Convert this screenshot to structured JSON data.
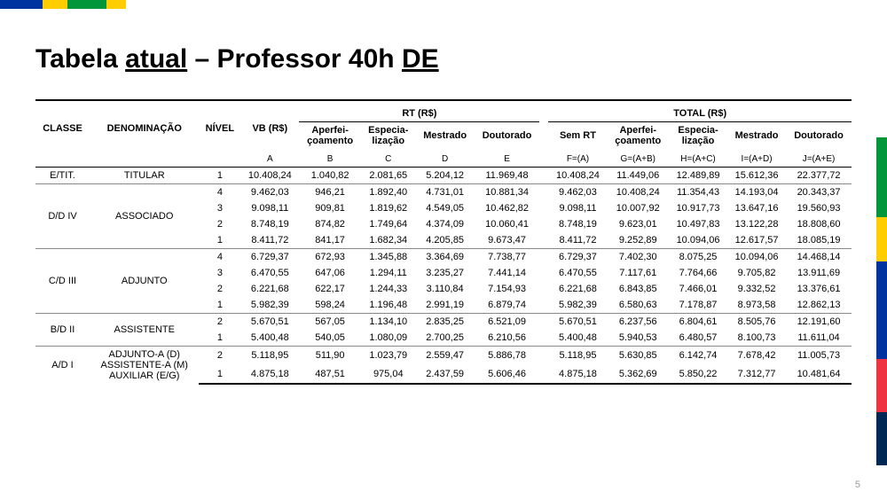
{
  "colors": {
    "green": "#009639",
    "yellow": "#ffcd00",
    "blue": "#0033a0",
    "red": "#ef3340",
    "darkblue": "#002855"
  },
  "page_number": "5",
  "title_parts": {
    "p1": "Tabela ",
    "p2": "atual",
    "p3": " – Professor 40h ",
    "p4": "DE"
  },
  "headers": {
    "classe": "CLASSE",
    "denom": "DENOMINAÇÃO",
    "nivel": "NÍVEL",
    "vb": "VB (R$)",
    "rt": "RT (R$)",
    "total": "TOTAL (R$)",
    "aperf": "Aperfei-\nçoamento",
    "espec": "Especia-\nlização",
    "mest": "Mestrado",
    "dout": "Doutorado",
    "semrt": "Sem RT"
  },
  "col_letters": {
    "a": "A",
    "b": "B",
    "c": "C",
    "d": "D",
    "e": "E",
    "f": "F=(A)",
    "g": "G=(A+B)",
    "h": "H=(A+C)",
    "i": "I=(A+D)",
    "j": "J=(A+E)"
  },
  "groups": [
    {
      "classe": "E/TIT.",
      "denom": "TITULAR",
      "rows": [
        {
          "nivel": "1",
          "vb": "10.408,24",
          "b": "1.040,82",
          "c": "2.081,65",
          "d": "5.204,12",
          "e": "11.969,48",
          "f": "10.408,24",
          "g": "11.449,06",
          "h": "12.489,89",
          "i": "15.612,36",
          "j": "22.377,72"
        }
      ]
    },
    {
      "classe": "D/D IV",
      "denom": "ASSOCIADO",
      "rows": [
        {
          "nivel": "4",
          "vb": "9.462,03",
          "b": "946,21",
          "c": "1.892,40",
          "d": "4.731,01",
          "e": "10.881,34",
          "f": "9.462,03",
          "g": "10.408,24",
          "h": "11.354,43",
          "i": "14.193,04",
          "j": "20.343,37"
        },
        {
          "nivel": "3",
          "vb": "9.098,11",
          "b": "909,81",
          "c": "1.819,62",
          "d": "4.549,05",
          "e": "10.462,82",
          "f": "9.098,11",
          "g": "10.007,92",
          "h": "10.917,73",
          "i": "13.647,16",
          "j": "19.560,93"
        },
        {
          "nivel": "2",
          "vb": "8.748,19",
          "b": "874,82",
          "c": "1.749,64",
          "d": "4.374,09",
          "e": "10.060,41",
          "f": "8.748,19",
          "g": "9.623,01",
          "h": "10.497,83",
          "i": "13.122,28",
          "j": "18.808,60"
        },
        {
          "nivel": "1",
          "vb": "8.411,72",
          "b": "841,17",
          "c": "1.682,34",
          "d": "4.205,85",
          "e": "9.673,47",
          "f": "8.411,72",
          "g": "9.252,89",
          "h": "10.094,06",
          "i": "12.617,57",
          "j": "18.085,19"
        }
      ]
    },
    {
      "classe": "C/D III",
      "denom": "ADJUNTO",
      "rows": [
        {
          "nivel": "4",
          "vb": "6.729,37",
          "b": "672,93",
          "c": "1.345,88",
          "d": "3.364,69",
          "e": "7.738,77",
          "f": "6.729,37",
          "g": "7.402,30",
          "h": "8.075,25",
          "i": "10.094,06",
          "j": "14.468,14"
        },
        {
          "nivel": "3",
          "vb": "6.470,55",
          "b": "647,06",
          "c": "1.294,11",
          "d": "3.235,27",
          "e": "7.441,14",
          "f": "6.470,55",
          "g": "7.117,61",
          "h": "7.764,66",
          "i": "9.705,82",
          "j": "13.911,69"
        },
        {
          "nivel": "2",
          "vb": "6.221,68",
          "b": "622,17",
          "c": "1.244,33",
          "d": "3.110,84",
          "e": "7.154,93",
          "f": "6.221,68",
          "g": "6.843,85",
          "h": "7.466,01",
          "i": "9.332,52",
          "j": "13.376,61"
        },
        {
          "nivel": "1",
          "vb": "5.982,39",
          "b": "598,24",
          "c": "1.196,48",
          "d": "2.991,19",
          "e": "6.879,74",
          "f": "5.982,39",
          "g": "6.580,63",
          "h": "7.178,87",
          "i": "8.973,58",
          "j": "12.862,13"
        }
      ]
    },
    {
      "classe": "B/D II",
      "denom": "ASSISTENTE",
      "rows": [
        {
          "nivel": "2",
          "vb": "5.670,51",
          "b": "567,05",
          "c": "1.134,10",
          "d": "2.835,25",
          "e": "6.521,09",
          "f": "5.670,51",
          "g": "6.237,56",
          "h": "6.804,61",
          "i": "8.505,76",
          "j": "12.191,60"
        },
        {
          "nivel": "1",
          "vb": "5.400,48",
          "b": "540,05",
          "c": "1.080,09",
          "d": "2.700,25",
          "e": "6.210,56",
          "f": "5.400,48",
          "g": "5.940,53",
          "h": "6.480,57",
          "i": "8.100,73",
          "j": "11.611,04"
        }
      ]
    },
    {
      "classe": "A/D I",
      "denom": "ADJUNTO-A (D)\nASSISTENTE-A (M)\nAUXILIAR (E/G)",
      "rows": [
        {
          "nivel": "2",
          "vb": "5.118,95",
          "b": "511,90",
          "c": "1.023,79",
          "d": "2.559,47",
          "e": "5.886,78",
          "f": "5.118,95",
          "g": "5.630,85",
          "h": "6.142,74",
          "i": "7.678,42",
          "j": "11.005,73"
        },
        {
          "nivel": "1",
          "vb": "4.875,18",
          "b": "487,51",
          "c": "975,04",
          "d": "2.437,59",
          "e": "5.606,46",
          "f": "4.875,18",
          "g": "5.362,69",
          "h": "5.850,22",
          "i": "7.312,77",
          "j": "10.481,64"
        }
      ]
    }
  ]
}
